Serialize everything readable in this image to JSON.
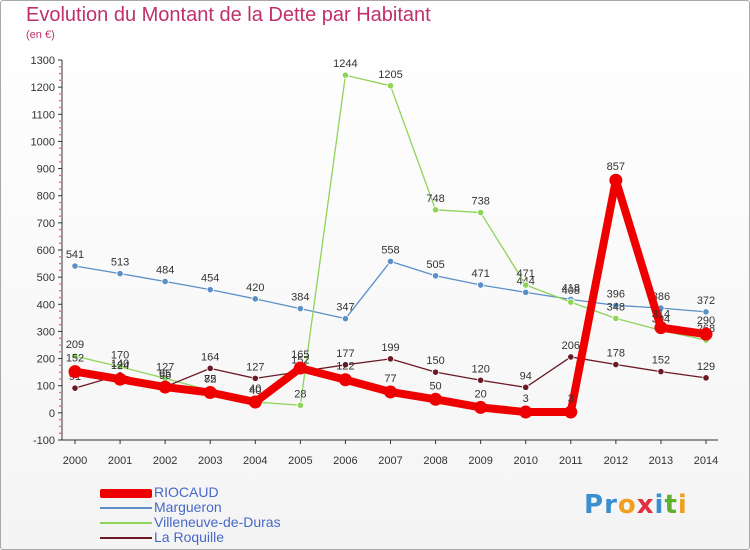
{
  "title": "Evolution du Montant de la Dette par Habitant",
  "subtitle": "(en €)",
  "logo": {
    "letters": [
      "P",
      "r",
      "o",
      "x",
      "i",
      "t",
      "i"
    ],
    "colors": [
      "#3a8fd0",
      "#3a8fd0",
      "#f0a020",
      "#e03040",
      "#3a8fd0",
      "#60b030",
      "#f0a020"
    ]
  },
  "chart_data": {
    "type": "line",
    "categories": [
      "2000",
      "2001",
      "2002",
      "2003",
      "2004",
      "2005",
      "2006",
      "2007",
      "2008",
      "2009",
      "2010",
      "2011",
      "2012",
      "2013",
      "2014"
    ],
    "ylim": [
      -100,
      1300
    ],
    "yticks": [
      "-100",
      "0",
      "100",
      "200",
      "300",
      "400",
      "500",
      "600",
      "700",
      "800",
      "900",
      "1000",
      "1100",
      "1200",
      "1300"
    ],
    "grid": false,
    "legend_position": "bottom-left",
    "series": [
      {
        "name": "Margueron",
        "color": "#5b8fc8",
        "values": [
          541,
          513,
          484,
          454,
          420,
          384,
          347,
          558,
          505,
          471,
          444,
          418,
          396,
          386,
          372
        ],
        "labels": [
          "541",
          "513",
          "484",
          "454",
          "420",
          "384",
          "347",
          "558",
          "505",
          "471",
          "444",
          "418",
          "396",
          "386",
          "372"
        ]
      },
      {
        "name": "Villeneuve-de-Duras",
        "color": "#8ed35a",
        "values": [
          209,
          170,
          127,
          82,
          40,
          28,
          1244,
          1205,
          748,
          738,
          471,
          408,
          348,
          304,
          268
        ],
        "labels": [
          "209",
          "170",
          "127",
          "82",
          "40",
          "28",
          "1244",
          "1205",
          "748",
          "738",
          "471",
          "408",
          "348",
          "304",
          "268"
        ]
      },
      {
        "name": "La Roquille",
        "color": "#6b1a24",
        "values": [
          91,
          140,
          96,
          164,
          127,
          152,
          177,
          199,
          150,
          120,
          94,
          206,
          178,
          152,
          129
        ],
        "labels": [
          "91",
          "140",
          "96",
          "164",
          "127",
          "152",
          "177",
          "199",
          "150",
          "120",
          "94",
          "206",
          "178",
          "152",
          "129"
        ]
      },
      {
        "name": "RIOCAUD",
        "color": "#ee0000",
        "values": [
          152,
          124,
          95,
          75,
          40,
          165,
          122,
          77,
          50,
          20,
          3,
          3,
          857,
          314,
          290
        ],
        "labels": [
          "152",
          "124",
          "95",
          "75",
          "40",
          "165",
          "122",
          "77",
          "50",
          "20",
          "3",
          "3",
          "857",
          "314",
          "290"
        ]
      }
    ],
    "legend": [
      {
        "name": "RIOCAUD",
        "color": "#ee0000"
      },
      {
        "name": "Margueron",
        "color": "#5b8fc8"
      },
      {
        "name": "Villeneuve-de-Duras",
        "color": "#8ed35a"
      },
      {
        "name": "La Roquille",
        "color": "#6b1a24"
      }
    ]
  }
}
